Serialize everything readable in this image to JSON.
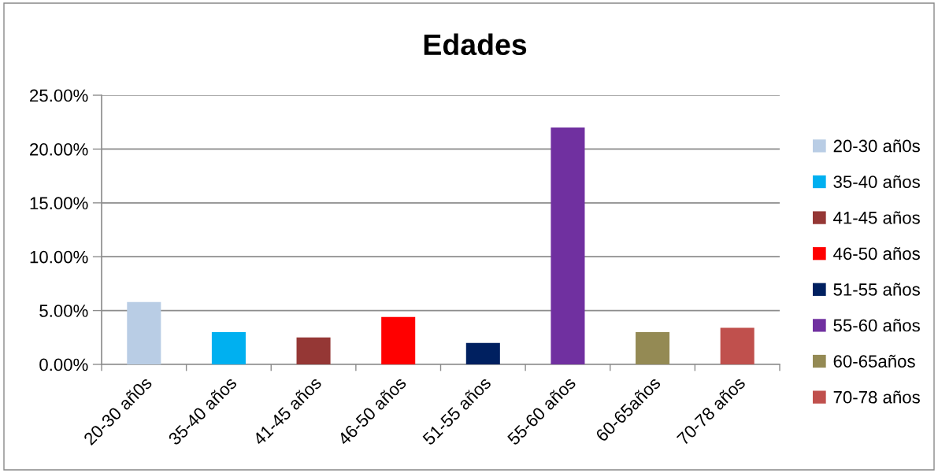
{
  "chart_data": {
    "type": "bar",
    "title": "Edades",
    "categories": [
      "20-30 añ0s",
      "35-40 años",
      "41-45 años",
      "46-50 años",
      "51-55 años",
      "55-60 años",
      "60-65años",
      "70-78 años"
    ],
    "series": [
      {
        "name": "20-30 añ0s",
        "color": "#b9cde5",
        "values": [
          5.8,
          null,
          null,
          null,
          null,
          null,
          null,
          null
        ]
      },
      {
        "name": "35-40 años",
        "color": "#00b0f0",
        "values": [
          null,
          3.0,
          null,
          null,
          null,
          null,
          null,
          null
        ]
      },
      {
        "name": "41-45 años",
        "color": "#953735",
        "values": [
          null,
          null,
          2.5,
          null,
          null,
          null,
          null,
          null
        ]
      },
      {
        "name": "46-50 años",
        "color": "#ff0000",
        "values": [
          null,
          null,
          null,
          4.4,
          null,
          null,
          null,
          null
        ]
      },
      {
        "name": "51-55 años",
        "color": "#002060",
        "values": [
          null,
          null,
          null,
          null,
          2.0,
          null,
          null,
          null
        ]
      },
      {
        "name": "55-60 años",
        "color": "#7030a0",
        "values": [
          null,
          null,
          null,
          null,
          null,
          22.0,
          null,
          null
        ]
      },
      {
        "name": "60-65años",
        "color": "#948a54",
        "values": [
          null,
          null,
          null,
          null,
          null,
          null,
          3.0,
          null
        ]
      },
      {
        "name": "70-78 años",
        "color": "#c0504d",
        "values": [
          null,
          null,
          null,
          null,
          null,
          null,
          null,
          3.4
        ]
      }
    ],
    "ylim": [
      0,
      25
    ],
    "yticks": [
      {
        "value": 0,
        "label": "0.00%"
      },
      {
        "value": 5,
        "label": "5.00%"
      },
      {
        "value": 10,
        "label": "10.00%"
      },
      {
        "value": 15,
        "label": "15.00%"
      },
      {
        "value": 20,
        "label": "20.00%"
      },
      {
        "value": 25,
        "label": "25.00%"
      }
    ],
    "grid": "y",
    "legend": "right"
  }
}
